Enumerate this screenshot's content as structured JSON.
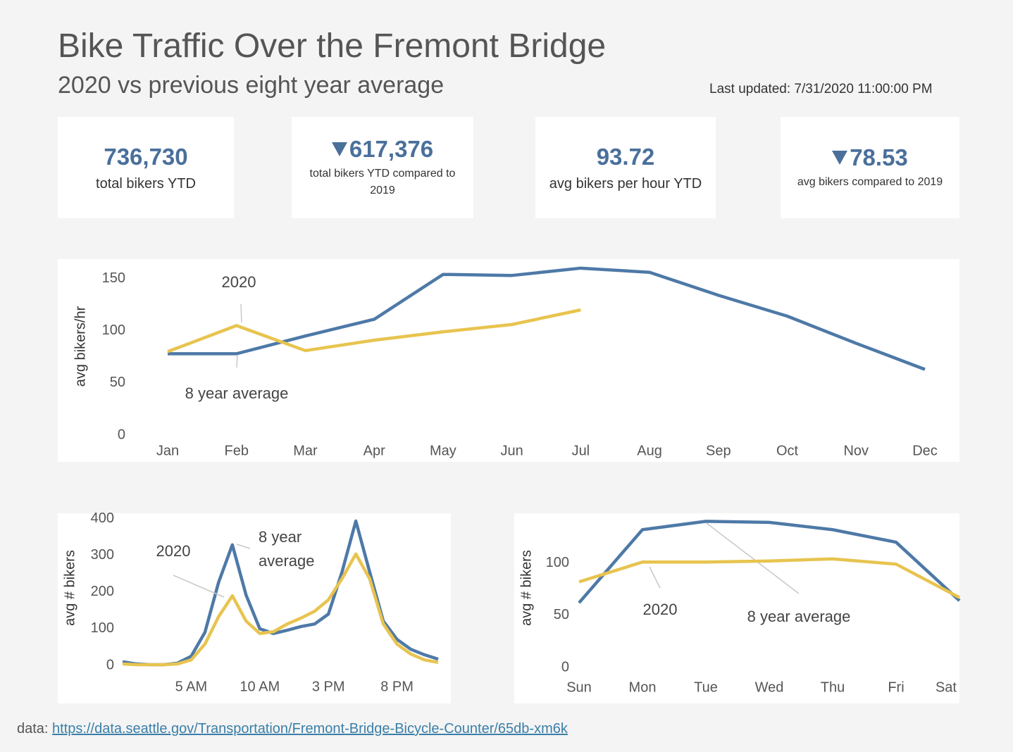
{
  "header": {
    "title": "Bike Traffic Over the Fremont Bridge",
    "subtitle": "2020 vs previous eight year average",
    "last_updated": "Last updated: 7/31/2020 11:00:00 PM"
  },
  "kpis": [
    {
      "value": "736,730",
      "label": "total bikers YTD"
    },
    {
      "value": "617,376",
      "label": "total bikers YTD compared to 2019",
      "direction": "down"
    },
    {
      "value": "93.72",
      "label": "avg bikers per hour YTD"
    },
    {
      "value": "78.53",
      "label": "avg bikers compared to 2019",
      "direction": "down"
    }
  ],
  "chart_data": [
    {
      "type": "line",
      "y_label": "avg bikers/hr",
      "categories": [
        "Jan",
        "Feb",
        "Mar",
        "Apr",
        "May",
        "Jun",
        "Jul",
        "Aug",
        "Sep",
        "Oct",
        "Nov",
        "Dec"
      ],
      "series": [
        {
          "name": "8 year average",
          "color": "#4e79a7",
          "values": [
            78,
            78,
            95,
            111,
            154,
            153,
            160,
            156,
            134,
            114,
            88,
            63
          ]
        },
        {
          "name": "2020",
          "color": "#e8c44f",
          "values": [
            80,
            105,
            81,
            91,
            99,
            106,
            120,
            null,
            null,
            null,
            null,
            null
          ]
        }
      ],
      "ylim": [
        0,
        170
      ],
      "yticks": [
        0,
        50,
        100,
        150
      ]
    },
    {
      "type": "line",
      "y_label": "avg # bikers",
      "categories": [
        null,
        null,
        null,
        null,
        null,
        "5 AM",
        null,
        null,
        null,
        null,
        "10 AM",
        null,
        null,
        null,
        null,
        "3 PM",
        null,
        null,
        null,
        null,
        "8 PM",
        null,
        null,
        null
      ],
      "series": [
        {
          "name": "8 year average",
          "color": "#4e79a7",
          "values": [
            10,
            4,
            2,
            2,
            6,
            25,
            90,
            227,
            329,
            192,
            100,
            87,
            96,
            106,
            113,
            140,
            256,
            394,
            256,
            121,
            71,
            44,
            29,
            17
          ]
        },
        {
          "name": "2020",
          "color": "#e8c44f",
          "values": [
            4,
            2,
            2,
            2,
            4,
            15,
            58,
            133,
            190,
            121,
            87,
            92,
            113,
            129,
            148,
            179,
            237,
            304,
            237,
            113,
            58,
            31,
            15,
            8
          ]
        }
      ],
      "ylim": [
        0,
        415
      ],
      "yticks": [
        0,
        100,
        200,
        300,
        400
      ]
    },
    {
      "type": "line",
      "y_label": "avg # bikers",
      "categories": [
        "Sun",
        "Mon",
        "Tue",
        "Wed",
        "Thu",
        "Fri",
        "Sat"
      ],
      "series": [
        {
          "name": "8 year average",
          "color": "#4e79a7",
          "values": [
            62,
            132,
            140,
            139,
            132,
            120,
            64
          ]
        },
        {
          "name": "2020",
          "color": "#e8c44f",
          "values": [
            82,
            101,
            101,
            102,
            104,
            99,
            67
          ]
        }
      ],
      "ylim": [
        0,
        147
      ],
      "yticks": [
        0,
        50,
        100
      ]
    }
  ],
  "footer": {
    "label": "data:",
    "link": "https://data.seattle.gov/Transportation/Fremont-Bridge-Bicycle-Counter/65db-xm6k"
  }
}
